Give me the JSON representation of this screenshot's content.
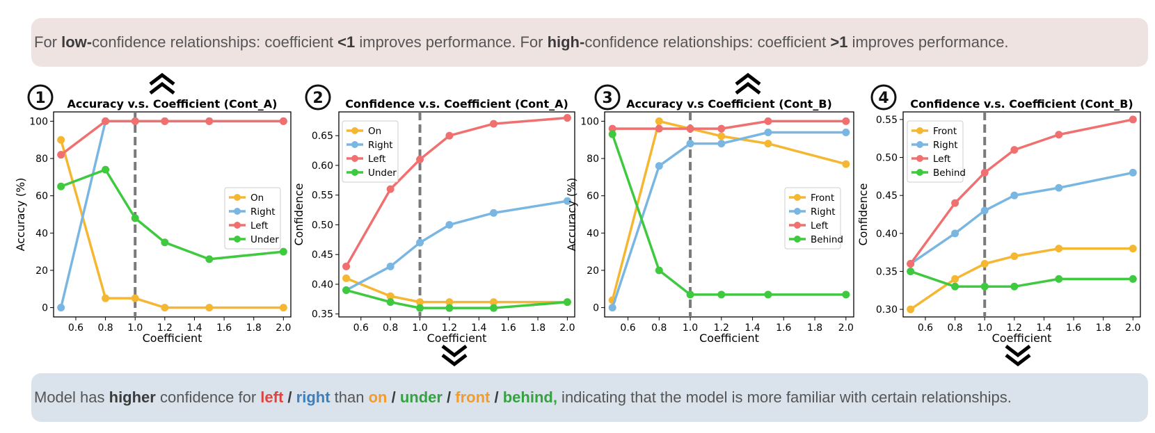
{
  "banner_top": {
    "p1": "For ",
    "b1": "low-",
    "p2": "confidence relationships: coefficient ",
    "b2": "<1",
    "p3": " improves performance. For ",
    "b3": "high-",
    "p4": "confidence relationships: coefficient ",
    "b4": ">1",
    "p5": " improves performance."
  },
  "banner_bottom": {
    "p1": "Model has ",
    "b1": "higher",
    "p2": " confidence for ",
    "left": "left",
    "s1": " / ",
    "right": "right",
    "p3": " than ",
    "on": "on",
    "s2": " / ",
    "under": "under",
    "s3": " / ",
    "front": "front",
    "s4": " / ",
    "behind": "behind,",
    "p4": " indicating that the model is more familiar with certain relationships."
  },
  "colors": {
    "yellow": "#f5b731",
    "blue": "#7ab6e2",
    "red": "#f07070",
    "green": "#3ec93e",
    "dashed": "#7a7a7a"
  },
  "chart_data": [
    {
      "number": "1",
      "type": "line",
      "title": "Accuracy v.s. Coefficient (Cont_A)",
      "xlabel": "Coefficient",
      "ylabel": "Accuracy (%)",
      "xlim": [
        0.45,
        2.05
      ],
      "ylim": [
        -5,
        105
      ],
      "xticks": [
        0.6,
        0.8,
        1.0,
        1.2,
        1.4,
        1.6,
        1.8,
        2.0
      ],
      "yticks": [
        0,
        20,
        40,
        60,
        80,
        100
      ],
      "ytick_decimals": 0,
      "vline": 1.0,
      "legend": "center-right",
      "arrow": "up",
      "x": [
        0.5,
        0.8,
        1.0,
        1.2,
        1.5,
        2.0
      ],
      "series": [
        {
          "name": "On",
          "color": "#f5b731",
          "values": [
            90,
            5,
            5,
            0,
            0,
            0
          ]
        },
        {
          "name": "Right",
          "color": "#7ab6e2",
          "values": [
            0,
            100,
            100,
            100,
            100,
            100
          ]
        },
        {
          "name": "Left",
          "color": "#f07070",
          "values": [
            82,
            100,
            100,
            100,
            100,
            100
          ]
        },
        {
          "name": "Under",
          "color": "#3ec93e",
          "values": [
            65,
            74,
            48,
            35,
            26,
            30
          ]
        }
      ]
    },
    {
      "number": "2",
      "type": "line",
      "title": "Confidence v.s. Coefficient (Cont_A)",
      "xlabel": "Coefficient",
      "ylabel": "Confidence",
      "xlim": [
        0.45,
        2.05
      ],
      "ylim": [
        0.345,
        0.69
      ],
      "xticks": [
        0.6,
        0.8,
        1.0,
        1.2,
        1.4,
        1.6,
        1.8,
        2.0
      ],
      "yticks": [
        0.35,
        0.4,
        0.45,
        0.5,
        0.55,
        0.6,
        0.65
      ],
      "ytick_decimals": 2,
      "vline": 1.0,
      "legend": "top-left",
      "arrow": "down",
      "x": [
        0.5,
        0.8,
        1.0,
        1.2,
        1.5,
        2.0
      ],
      "series": [
        {
          "name": "On",
          "color": "#f5b731",
          "values": [
            0.41,
            0.38,
            0.37,
            0.37,
            0.37,
            0.37
          ]
        },
        {
          "name": "Right",
          "color": "#7ab6e2",
          "values": [
            0.39,
            0.43,
            0.47,
            0.5,
            0.52,
            0.54
          ]
        },
        {
          "name": "Left",
          "color": "#f07070",
          "values": [
            0.43,
            0.56,
            0.61,
            0.65,
            0.67,
            0.68
          ]
        },
        {
          "name": "Under",
          "color": "#3ec93e",
          "values": [
            0.39,
            0.37,
            0.36,
            0.36,
            0.36,
            0.37
          ]
        }
      ]
    },
    {
      "number": "3",
      "type": "line",
      "title": "Accuracy v.s Coefficient (Cont_B)",
      "xlabel": "Coefficient",
      "ylabel": "Accuracy (%)",
      "xlim": [
        0.45,
        2.05
      ],
      "ylim": [
        -5,
        105
      ],
      "xticks": [
        0.6,
        0.8,
        1.0,
        1.2,
        1.4,
        1.6,
        1.8,
        2.0
      ],
      "yticks": [
        0,
        20,
        40,
        60,
        80,
        100
      ],
      "ytick_decimals": 0,
      "vline": 1.0,
      "legend": "center-right",
      "arrow": "up",
      "x": [
        0.5,
        0.8,
        1.0,
        1.2,
        1.5,
        2.0
      ],
      "series": [
        {
          "name": "Front",
          "color": "#f5b731",
          "values": [
            4,
            100,
            96,
            92,
            88,
            77
          ]
        },
        {
          "name": "Right",
          "color": "#7ab6e2",
          "values": [
            0,
            76,
            88,
            88,
            94,
            94
          ]
        },
        {
          "name": "Left",
          "color": "#f07070",
          "values": [
            96,
            96,
            96,
            96,
            100,
            100
          ]
        },
        {
          "name": "Behind",
          "color": "#3ec93e",
          "values": [
            93,
            20,
            7,
            7,
            7,
            7
          ]
        }
      ]
    },
    {
      "number": "4",
      "type": "line",
      "title": "Confidence v.s. Coefficient (Cont_B)",
      "xlabel": "Coefficient",
      "ylabel": "Confidence",
      "xlim": [
        0.45,
        2.05
      ],
      "ylim": [
        0.29,
        0.56
      ],
      "xticks": [
        0.6,
        0.8,
        1.0,
        1.2,
        1.4,
        1.6,
        1.8,
        2.0
      ],
      "yticks": [
        0.3,
        0.35,
        0.4,
        0.45,
        0.5,
        0.55
      ],
      "ytick_decimals": 2,
      "vline": 1.0,
      "legend": "top-left",
      "arrow": "down",
      "x": [
        0.5,
        0.8,
        1.0,
        1.2,
        1.5,
        2.0
      ],
      "series": [
        {
          "name": "Front",
          "color": "#f5b731",
          "values": [
            0.3,
            0.34,
            0.36,
            0.37,
            0.38,
            0.38
          ]
        },
        {
          "name": "Right",
          "color": "#7ab6e2",
          "values": [
            0.36,
            0.4,
            0.43,
            0.45,
            0.46,
            0.48
          ]
        },
        {
          "name": "Left",
          "color": "#f07070",
          "values": [
            0.36,
            0.44,
            0.48,
            0.51,
            0.53,
            0.55
          ]
        },
        {
          "name": "Behind",
          "color": "#3ec93e",
          "values": [
            0.35,
            0.33,
            0.33,
            0.33,
            0.34,
            0.34
          ]
        }
      ]
    }
  ]
}
